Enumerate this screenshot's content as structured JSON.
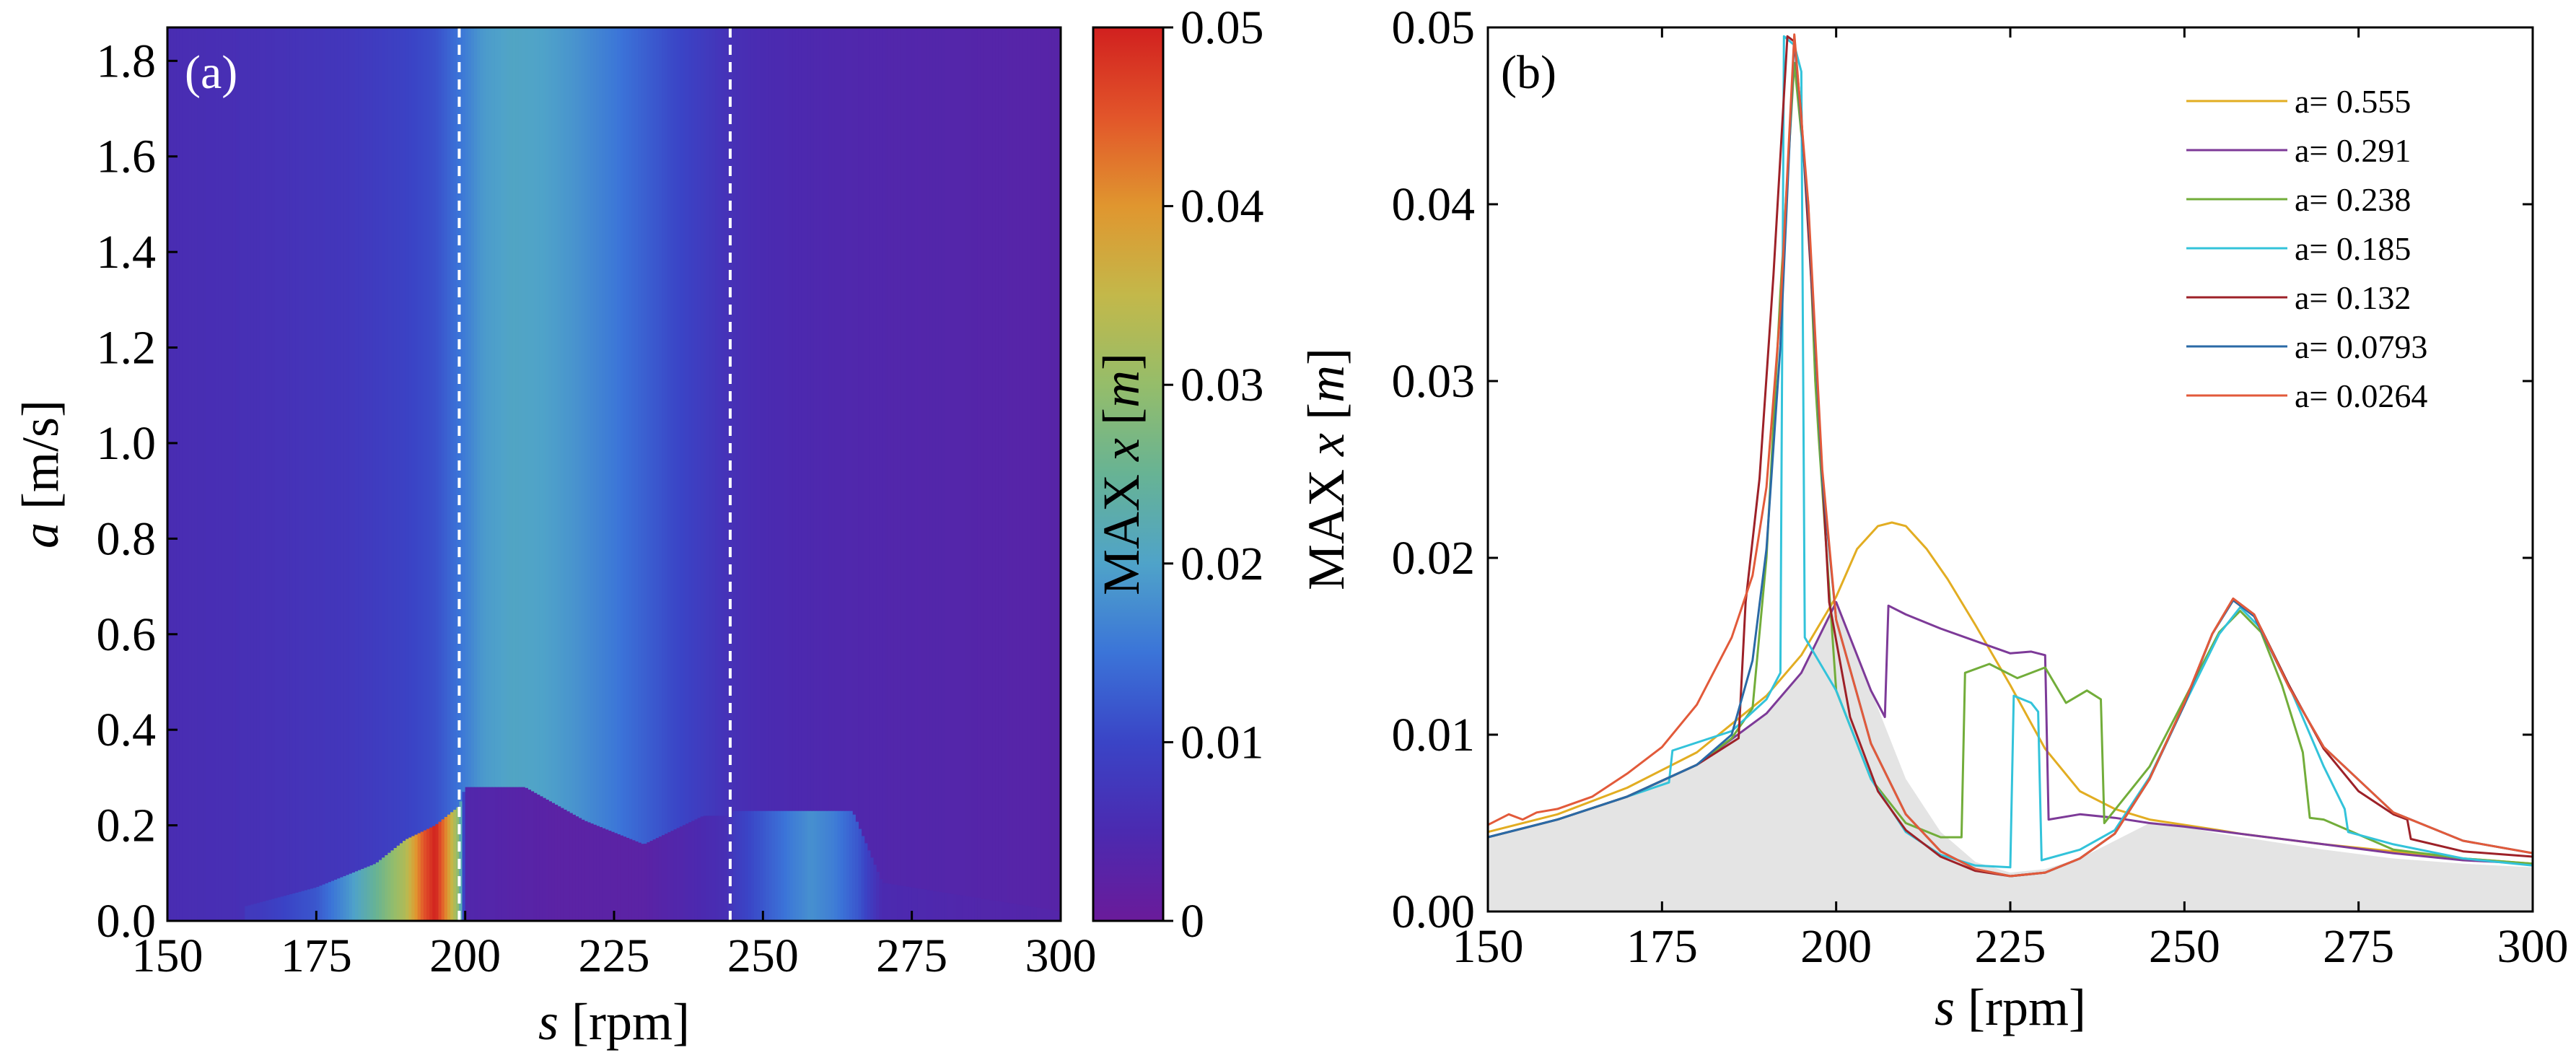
{
  "figure": {
    "panel_a_label": "(a)",
    "panel_b_label": "(b)"
  },
  "chart_data": [
    {
      "type": "heatmap",
      "panel": "(a)",
      "xlabel": {
        "var": "s",
        "unit": " [rpm]"
      },
      "ylabel": {
        "var": "a",
        "unit": " [m/s]"
      },
      "xlim": [
        150,
        300
      ],
      "ylim": [
        0,
        1.87
      ],
      "xticks": [
        150,
        175,
        200,
        225,
        250,
        275,
        300
      ],
      "xtick_labels": [
        "150",
        "175",
        "200",
        "225",
        "250",
        "275",
        "300"
      ],
      "yticks": [
        0,
        0.2,
        0.4,
        0.6,
        0.8,
        1.0,
        1.2,
        1.4,
        1.6,
        1.8
      ],
      "ytick_labels": [
        "0.0",
        "0.2",
        "0.4",
        "0.6",
        "0.8",
        "1.0",
        "1.2",
        "1.4",
        "1.6",
        "1.8"
      ],
      "colorbar": {
        "label": "MAX x [m]",
        "label_prefix": "MAX ",
        "label_var": "x",
        "label_unit_open": " [",
        "label_unit": "m",
        "label_unit_close": "]",
        "range": [
          0,
          0.05
        ],
        "ticks": [
          0,
          0.01,
          0.02,
          0.03,
          0.04,
          0.05
        ],
        "tick_labels": [
          "0",
          "0.01",
          "0.02",
          "0.03",
          "0.04",
          "0.05"
        ],
        "colormap": [
          "#6a1b9a",
          "#4b2ab0",
          "#3a44c6",
          "#3b74d8",
          "#4fa3c9",
          "#67b394",
          "#95bd6a",
          "#c3b84a",
          "#e0962f",
          "#e2552a",
          "#d1201f"
        ]
      },
      "dashed_lines_x": [
        199,
        244.5
      ],
      "upper_branch_columns": {
        "s": [
          150,
          165,
          180,
          190,
          195,
          199,
          203,
          208,
          213,
          218,
          225,
          235,
          245,
          250,
          255,
          260,
          265,
          275,
          285,
          300
        ],
        "max_x": [
          0.0055,
          0.0062,
          0.0075,
          0.0095,
          0.0112,
          0.015,
          0.019,
          0.0205,
          0.02,
          0.0185,
          0.0155,
          0.0105,
          0.0062,
          0.0052,
          0.0048,
          0.0045,
          0.0042,
          0.0038,
          0.0035,
          0.003
        ]
      },
      "low_a_region": {
        "s": [
          165,
          175,
          180,
          185,
          190,
          193,
          195,
          197,
          199,
          200,
          215,
          230,
          244,
          245,
          250,
          255,
          258,
          262,
          266,
          270,
          285,
          300
        ],
        "max_x": [
          0.008,
          0.012,
          0.018,
          0.025,
          0.033,
          0.045,
          0.05,
          0.04,
          0.028,
          0.004,
          0.0025,
          0.0025,
          0.006,
          0.008,
          0.012,
          0.016,
          0.018,
          0.016,
          0.012,
          0.005,
          0.004,
          0.0035
        ]
      },
      "low_a_boundary": {
        "s": [
          163,
          175,
          185,
          190,
          195,
          199,
          200,
          210,
          220,
          230,
          240,
          244.5,
          245,
          265,
          270,
          300
        ],
        "a": [
          0.03,
          0.07,
          0.12,
          0.17,
          0.2,
          0.24,
          0.28,
          0.28,
          0.21,
          0.16,
          0.22,
          0.22,
          0.23,
          0.23,
          0.08,
          0.02
        ]
      }
    },
    {
      "type": "line",
      "panel": "(b)",
      "xlabel": {
        "var": "s",
        "unit": " [rpm]"
      },
      "ylabel": {
        "prefix": "MAX ",
        "var": "x",
        "unit_open": " [",
        "unit": "m",
        "unit_close": "]"
      },
      "xlim": [
        150,
        300
      ],
      "ylim": [
        0,
        0.05
      ],
      "xticks": [
        150,
        175,
        200,
        225,
        250,
        275,
        300
      ],
      "xtick_labels": [
        "150",
        "175",
        "200",
        "225",
        "250",
        "275",
        "300"
      ],
      "yticks": [
        0,
        0.01,
        0.02,
        0.03,
        0.04,
        0.05
      ],
      "ytick_labels": [
        "0.00",
        "0.01",
        "0.02",
        "0.03",
        "0.04",
        "0.05"
      ],
      "legend_position": "top-right",
      "shaded_region": {
        "color": "#e4e4e4",
        "x": [
          150,
          160,
          170,
          180,
          190,
          195,
          200,
          205,
          210,
          215,
          220,
          225,
          230,
          235,
          240,
          245,
          250,
          255,
          260,
          270,
          280,
          290,
          300
        ],
        "y": [
          0.0042,
          0.0052,
          0.0065,
          0.0083,
          0.0112,
          0.0135,
          0.0175,
          0.0125,
          0.0075,
          0.0045,
          0.0028,
          0.0022,
          0.0024,
          0.003,
          0.004,
          0.005,
          0.0048,
          0.0044,
          0.0041,
          0.0035,
          0.003,
          0.0027,
          0.0025
        ]
      },
      "series": [
        {
          "name": "a= 0.555",
          "color": "#e2ad22",
          "x": [
            150,
            160,
            170,
            180,
            190,
            195,
            200,
            203,
            206,
            208,
            210,
            213,
            216,
            220,
            225,
            230,
            235,
            240,
            245,
            250,
            255,
            258,
            262,
            266,
            270,
            280,
            290,
            300
          ],
          "y": [
            0.0045,
            0.0055,
            0.007,
            0.009,
            0.0122,
            0.0145,
            0.0178,
            0.0205,
            0.0218,
            0.022,
            0.0218,
            0.0205,
            0.0188,
            0.0162,
            0.0128,
            0.0092,
            0.0068,
            0.0058,
            0.0052,
            0.0049,
            0.0046,
            0.0044,
            0.0042,
            0.004,
            0.0038,
            0.0034,
            0.003,
            0.0027
          ]
        },
        {
          "name": "a= 0.291",
          "color": "#7d3a98",
          "x": [
            150,
            160,
            170,
            180,
            190,
            195,
            200,
            205,
            207,
            207.5,
            210,
            215,
            220,
            225,
            228,
            230,
            230.5,
            235,
            240,
            245,
            250,
            260,
            270,
            280,
            290,
            300
          ],
          "y": [
            0.0042,
            0.0052,
            0.0065,
            0.0083,
            0.0112,
            0.0135,
            0.0175,
            0.0125,
            0.011,
            0.0173,
            0.0168,
            0.016,
            0.0153,
            0.0146,
            0.0147,
            0.0145,
            0.0052,
            0.0055,
            0.0053,
            0.005,
            0.0048,
            0.0043,
            0.0038,
            0.0033,
            0.0029,
            0.0027
          ]
        },
        {
          "name": "a= 0.238",
          "color": "#72ad3a",
          "x": [
            150,
            160,
            170,
            180,
            185,
            188,
            190,
            192,
            194,
            196,
            197,
            197.5,
            200,
            205,
            210,
            215,
            218,
            218.5,
            222,
            226,
            230,
            233,
            236,
            238,
            238.5,
            245,
            250,
            255,
            258,
            261,
            264,
            267,
            268,
            270,
            280,
            290,
            300
          ],
          "y": [
            0.0042,
            0.0052,
            0.0065,
            0.0083,
            0.0098,
            0.0115,
            0.02,
            0.035,
            0.048,
            0.04,
            0.03,
            0.0268,
            0.0125,
            0.0075,
            0.005,
            0.0042,
            0.0042,
            0.0135,
            0.014,
            0.0132,
            0.0138,
            0.0118,
            0.0125,
            0.012,
            0.005,
            0.0082,
            0.012,
            0.0158,
            0.017,
            0.0158,
            0.0128,
            0.009,
            0.0053,
            0.0052,
            0.0035,
            0.003,
            0.0027
          ]
        },
        {
          "name": "a= 0.185",
          "color": "#33c3da",
          "x": [
            150,
            160,
            170,
            176,
            176.5,
            185,
            190,
            192,
            192.5,
            194,
            195,
            195.5,
            200,
            205,
            210,
            215,
            220,
            225,
            225.5,
            228,
            229,
            229.5,
            235,
            240,
            245,
            250,
            255,
            258,
            261,
            265,
            270,
            273,
            273.5,
            280,
            290,
            300
          ],
          "y": [
            0.0042,
            0.0052,
            0.0065,
            0.0073,
            0.0091,
            0.0102,
            0.012,
            0.0135,
            0.0495,
            0.049,
            0.0475,
            0.0155,
            0.0125,
            0.0075,
            0.0045,
            0.0032,
            0.0026,
            0.0025,
            0.0122,
            0.0118,
            0.0113,
            0.0029,
            0.0035,
            0.0046,
            0.0076,
            0.0117,
            0.0157,
            0.0172,
            0.016,
            0.0128,
            0.0082,
            0.0058,
            0.0045,
            0.0038,
            0.003,
            0.0026
          ]
        },
        {
          "name": "a= 0.132",
          "color": "#9d2128",
          "x": [
            150,
            160,
            170,
            180,
            186,
            187,
            189,
            191,
            193,
            194,
            195,
            197,
            199,
            202,
            206,
            210,
            215,
            220,
            225,
            230,
            235,
            240,
            245,
            250,
            254,
            257,
            260,
            265,
            270,
            275,
            280,
            282,
            282.5,
            290,
            300
          ],
          "y": [
            0.0042,
            0.0052,
            0.0065,
            0.0083,
            0.0098,
            0.0175,
            0.0245,
            0.036,
            0.0495,
            0.0492,
            0.045,
            0.032,
            0.0175,
            0.011,
            0.0068,
            0.0046,
            0.0031,
            0.0023,
            0.002,
            0.0022,
            0.003,
            0.0044,
            0.0075,
            0.0118,
            0.0157,
            0.0177,
            0.0168,
            0.0128,
            0.0092,
            0.0068,
            0.0055,
            0.0052,
            0.0041,
            0.0034,
            0.0031
          ]
        },
        {
          "name": "a= 0.0793",
          "color": "#2a6aa6",
          "x": [
            150,
            160,
            170,
            180,
            185,
            188,
            190,
            192,
            194,
            196,
            198,
            200,
            205,
            210,
            215,
            220,
            225,
            230,
            235,
            240,
            245,
            250,
            254,
            257,
            260,
            265,
            270,
            280,
            290,
            300
          ],
          "y": [
            0.0042,
            0.0052,
            0.0065,
            0.0083,
            0.01,
            0.0142,
            0.0205,
            0.032,
            0.0495,
            0.0395,
            0.0245,
            0.0165,
            0.0095,
            0.0055,
            0.0034,
            0.0024,
            0.002,
            0.0022,
            0.003,
            0.0044,
            0.0075,
            0.0117,
            0.0157,
            0.0176,
            0.0167,
            0.0127,
            0.0093,
            0.0056,
            0.004,
            0.0033
          ]
        },
        {
          "name": "a= 0.0264",
          "color": "#e25a3a",
          "x": [
            150,
            153,
            155,
            157,
            160,
            165,
            170,
            175,
            180,
            185,
            188,
            190,
            192,
            194,
            196,
            198,
            200,
            205,
            210,
            215,
            220,
            225,
            230,
            235,
            240,
            245,
            250,
            254,
            257,
            260,
            265,
            270,
            280,
            290,
            300
          ],
          "y": [
            0.0049,
            0.0055,
            0.0052,
            0.0056,
            0.0058,
            0.0065,
            0.0078,
            0.0093,
            0.0117,
            0.0155,
            0.019,
            0.024,
            0.034,
            0.0496,
            0.04,
            0.025,
            0.0165,
            0.0095,
            0.0055,
            0.0034,
            0.0024,
            0.002,
            0.0022,
            0.003,
            0.0044,
            0.0075,
            0.0118,
            0.0157,
            0.0177,
            0.0168,
            0.0127,
            0.0093,
            0.0056,
            0.004,
            0.0033
          ]
        }
      ]
    }
  ]
}
